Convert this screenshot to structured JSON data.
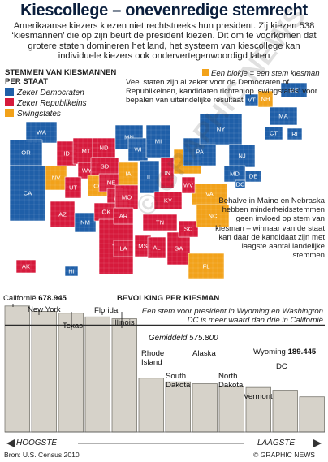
{
  "title": "Kiescollege – onevenredige stemrecht",
  "subtitle": "Amerikaanse kiezers kiezen niet rechtstreeks hun president. Zij kiezen 538 ‘kiesmannen’ die op zijn beurt de president kiezen. Dit om te voorkomen dat grotere staten domineren het land, het systeem van kiescollege kan individuele kiezers ook ondervertegenwoordigd laten",
  "colors": {
    "democrat": "#1f5fa8",
    "republican": "#d61a3c",
    "swing": "#f2a21a",
    "bar_fill": "#d6d2c9",
    "bar_edge": "#7a7870",
    "mean_line": "#2b2b2b"
  },
  "legend": {
    "title_line1": "STEMMEN VAN KIESMANNEN",
    "title_line2": "PER STAAT",
    "items": [
      {
        "label": "Zeker Democraten",
        "color": "#1f5fa8"
      },
      {
        "label": "Zeker Republikeins",
        "color": "#d61a3c"
      },
      {
        "label": "Swingstates",
        "color": "#f2a21a"
      }
    ],
    "block_key": "Een blokje = een stem kiesman"
  },
  "intro_text": "Veel staten zijn al zeker voor de Democraten of Republikeinen, kandidaten richten op ‘swingstates’ voor bepalen van uiteindelijke resultaat",
  "side_note": "Behalve in Maine en Nebraska hebben minderheidsstemmen geen invloed op stem van kiesman – winnaar van de staat kan daar de kandidaat zijn met laagste aantal landelijke stemmen",
  "map": {
    "states": [
      {
        "code": "WA",
        "party": "D"
      },
      {
        "code": "OR",
        "party": "D"
      },
      {
        "code": "CA",
        "party": "D"
      },
      {
        "code": "NV",
        "party": "S"
      },
      {
        "code": "ID",
        "party": "R"
      },
      {
        "code": "MT",
        "party": "R"
      },
      {
        "code": "WY",
        "party": "R"
      },
      {
        "code": "UT",
        "party": "R"
      },
      {
        "code": "AZ",
        "party": "R"
      },
      {
        "code": "CO",
        "party": "S"
      },
      {
        "code": "NM",
        "party": "D"
      },
      {
        "code": "ND",
        "party": "R"
      },
      {
        "code": "SD",
        "party": "R"
      },
      {
        "code": "NE",
        "party": "R"
      },
      {
        "code": "KS",
        "party": "R"
      },
      {
        "code": "OK",
        "party": "R"
      },
      {
        "code": "TX",
        "party": "R"
      },
      {
        "code": "MN",
        "party": "D"
      },
      {
        "code": "IA",
        "party": "S"
      },
      {
        "code": "MO",
        "party": "R"
      },
      {
        "code": "AR",
        "party": "R"
      },
      {
        "code": "LA",
        "party": "R"
      },
      {
        "code": "WI",
        "party": "D"
      },
      {
        "code": "IL",
        "party": "D"
      },
      {
        "code": "MI",
        "party": "D"
      },
      {
        "code": "IN",
        "party": "R"
      },
      {
        "code": "OH",
        "party": "S"
      },
      {
        "code": "KY",
        "party": "R"
      },
      {
        "code": "TN",
        "party": "R"
      },
      {
        "code": "MS",
        "party": "R"
      },
      {
        "code": "AL",
        "party": "R"
      },
      {
        "code": "GA",
        "party": "R"
      },
      {
        "code": "FL",
        "party": "S"
      },
      {
        "code": "SC",
        "party": "R"
      },
      {
        "code": "NC",
        "party": "S"
      },
      {
        "code": "VA",
        "party": "S"
      },
      {
        "code": "WV",
        "party": "R"
      },
      {
        "code": "PA",
        "party": "D"
      },
      {
        "code": "NY",
        "party": "D"
      },
      {
        "code": "VT",
        "party": "D"
      },
      {
        "code": "NH",
        "party": "S"
      },
      {
        "code": "ME",
        "party": "D"
      },
      {
        "code": "MA",
        "party": "D"
      },
      {
        "code": "CT",
        "party": "D"
      },
      {
        "code": "RI",
        "party": "D"
      },
      {
        "code": "NJ",
        "party": "D"
      },
      {
        "code": "DE",
        "party": "D"
      },
      {
        "code": "MD",
        "party": "D"
      },
      {
        "code": "DC",
        "party": "D"
      },
      {
        "code": "AK",
        "party": "R"
      },
      {
        "code": "HI",
        "party": "D"
      }
    ]
  },
  "chart_data": {
    "type": "bar",
    "title": "BEVOLKING PER KIESMAN",
    "note": "Een stem voor president in Wyoming en Washington DC is meer waard dan drie in Californië",
    "categories": [
      "Californië",
      "New York",
      "Texas",
      "Florida",
      "Illinois",
      "Rhode Island",
      "South Dakota",
      "Alaska",
      "North Dakota",
      "Vermont",
      "DC",
      "Wyoming"
    ],
    "values": [
      678945,
      650000,
      640000,
      620000,
      610000,
      290000,
      270000,
      260000,
      245000,
      240000,
      225000,
      189445
    ],
    "value_labels": {
      "Californië": "678.945",
      "Wyoming": "189.445"
    },
    "mean": 575800,
    "mean_label": "Gemiddeld 575.800",
    "ylim": [
      0,
      700000
    ],
    "axis_labels": {
      "left": "HOOGSTE",
      "right": "LAAGSTE"
    }
  },
  "source": "Bron: U.S. Census 2010",
  "credit": "© GRAPHIC NEWS",
  "watermark": "© GRAPHIC NEWS"
}
